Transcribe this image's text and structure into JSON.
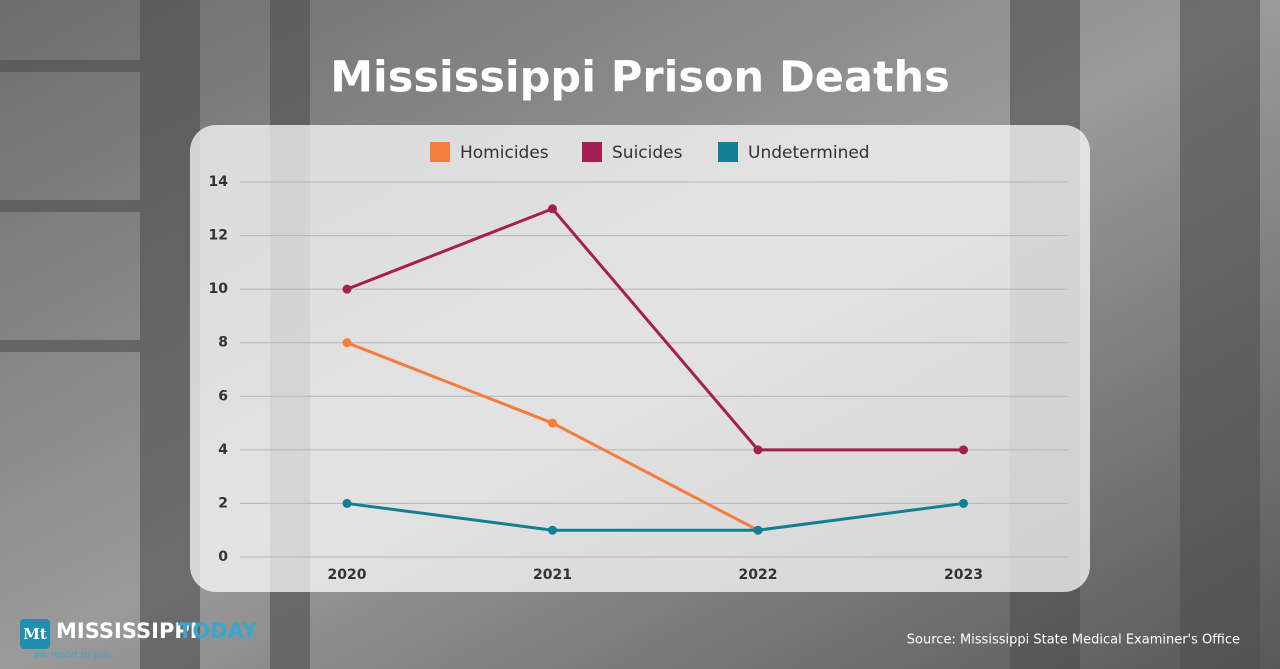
{
  "chart_data": {
    "type": "line",
    "title": "Mississippi Prison Deaths",
    "categories": [
      "2020",
      "2021",
      "2022",
      "2023"
    ],
    "series": [
      {
        "name": "Homicides",
        "color": "#f47c3c",
        "values": [
          8,
          5,
          1,
          null
        ]
      },
      {
        "name": "Suicides",
        "color": "#a51f52",
        "values": [
          10,
          13,
          4,
          4
        ]
      },
      {
        "name": "Undetermined",
        "color": "#137f93",
        "values": [
          2,
          1,
          1,
          2
        ]
      }
    ],
    "ylim": [
      0,
      14
    ],
    "yticks": [
      0,
      2,
      4,
      6,
      8,
      10,
      12,
      14
    ],
    "grid": true,
    "legend": "top",
    "source": "Source: Mississippi State Medical Examiner's Office",
    "branding": {
      "mark": "Mt",
      "name": "MISSISSIPPI",
      "name2": "TODAY",
      "tagline": "We report to you."
    }
  }
}
